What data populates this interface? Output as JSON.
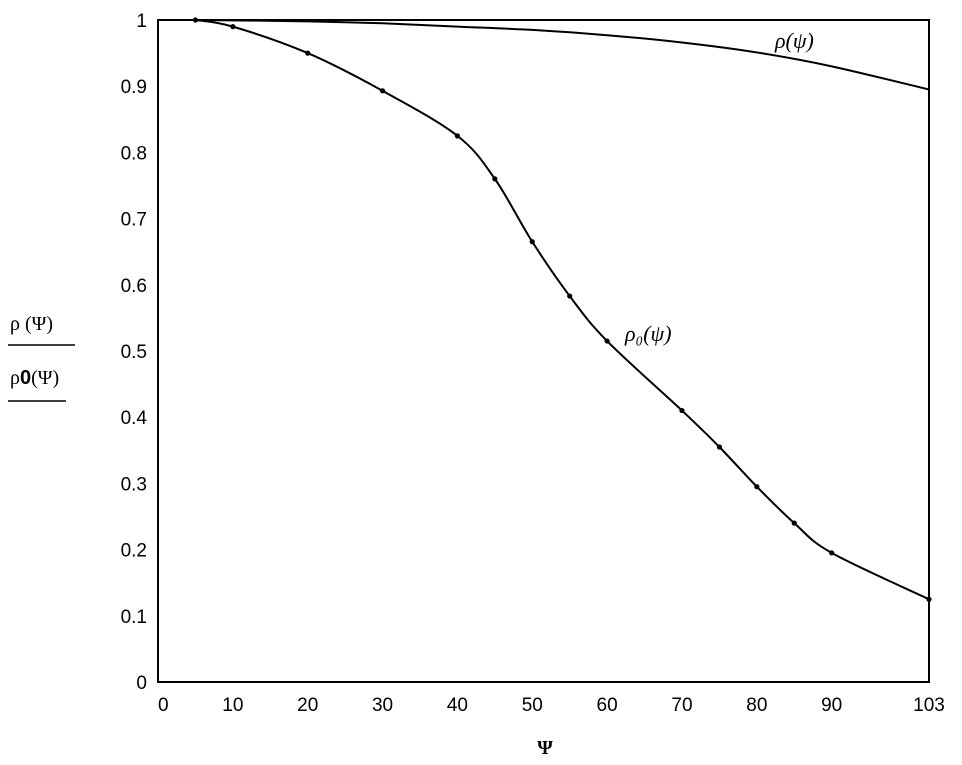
{
  "chart_data": {
    "type": "line",
    "title": "",
    "xlabel": "Ψ",
    "ylabel": {
      "numerator": "ρ (Ψ)",
      "denominator_prefix": "ρ",
      "denominator_bold": "0",
      "denominator_suffix": "(Ψ)"
    },
    "xlim": [
      0,
      103
    ],
    "ylim": [
      0,
      1
    ],
    "x_ticks": [
      0,
      10,
      20,
      30,
      40,
      50,
      60,
      70,
      80,
      90,
      103
    ],
    "x_tick_labels": [
      "0",
      "10",
      "20",
      "30",
      "40",
      "50",
      "60",
      "70",
      "80",
      "90",
      "103"
    ],
    "y_ticks": [
      0,
      0.1,
      0.2,
      0.3,
      0.4,
      0.5,
      0.6,
      0.7,
      0.8,
      0.9,
      1
    ],
    "y_tick_labels": [
      "0",
      "0.1",
      "0.2",
      "0.3",
      "0.4",
      "0.5",
      "0.6",
      "0.7",
      "0.8",
      "0.9",
      "1"
    ],
    "grid": false,
    "series": [
      {
        "name": "ρ(ψ)",
        "markers": false,
        "x": [
          5,
          20,
          30,
          40,
          50,
          60,
          70,
          80,
          90,
          103
        ],
        "y": [
          1.0,
          0.998,
          0.995,
          0.99,
          0.985,
          0.977,
          0.966,
          0.951,
          0.93,
          0.895
        ]
      },
      {
        "name": "ρ₀(ψ)",
        "markers": true,
        "x": [
          5,
          10,
          20,
          30,
          40,
          45,
          50,
          55,
          60,
          70,
          75,
          80,
          85,
          90,
          103
        ],
        "y": [
          1.0,
          0.99,
          0.95,
          0.893,
          0.825,
          0.76,
          0.665,
          0.583,
          0.515,
          0.41,
          0.355,
          0.295,
          0.24,
          0.195,
          0.125
        ]
      }
    ]
  }
}
